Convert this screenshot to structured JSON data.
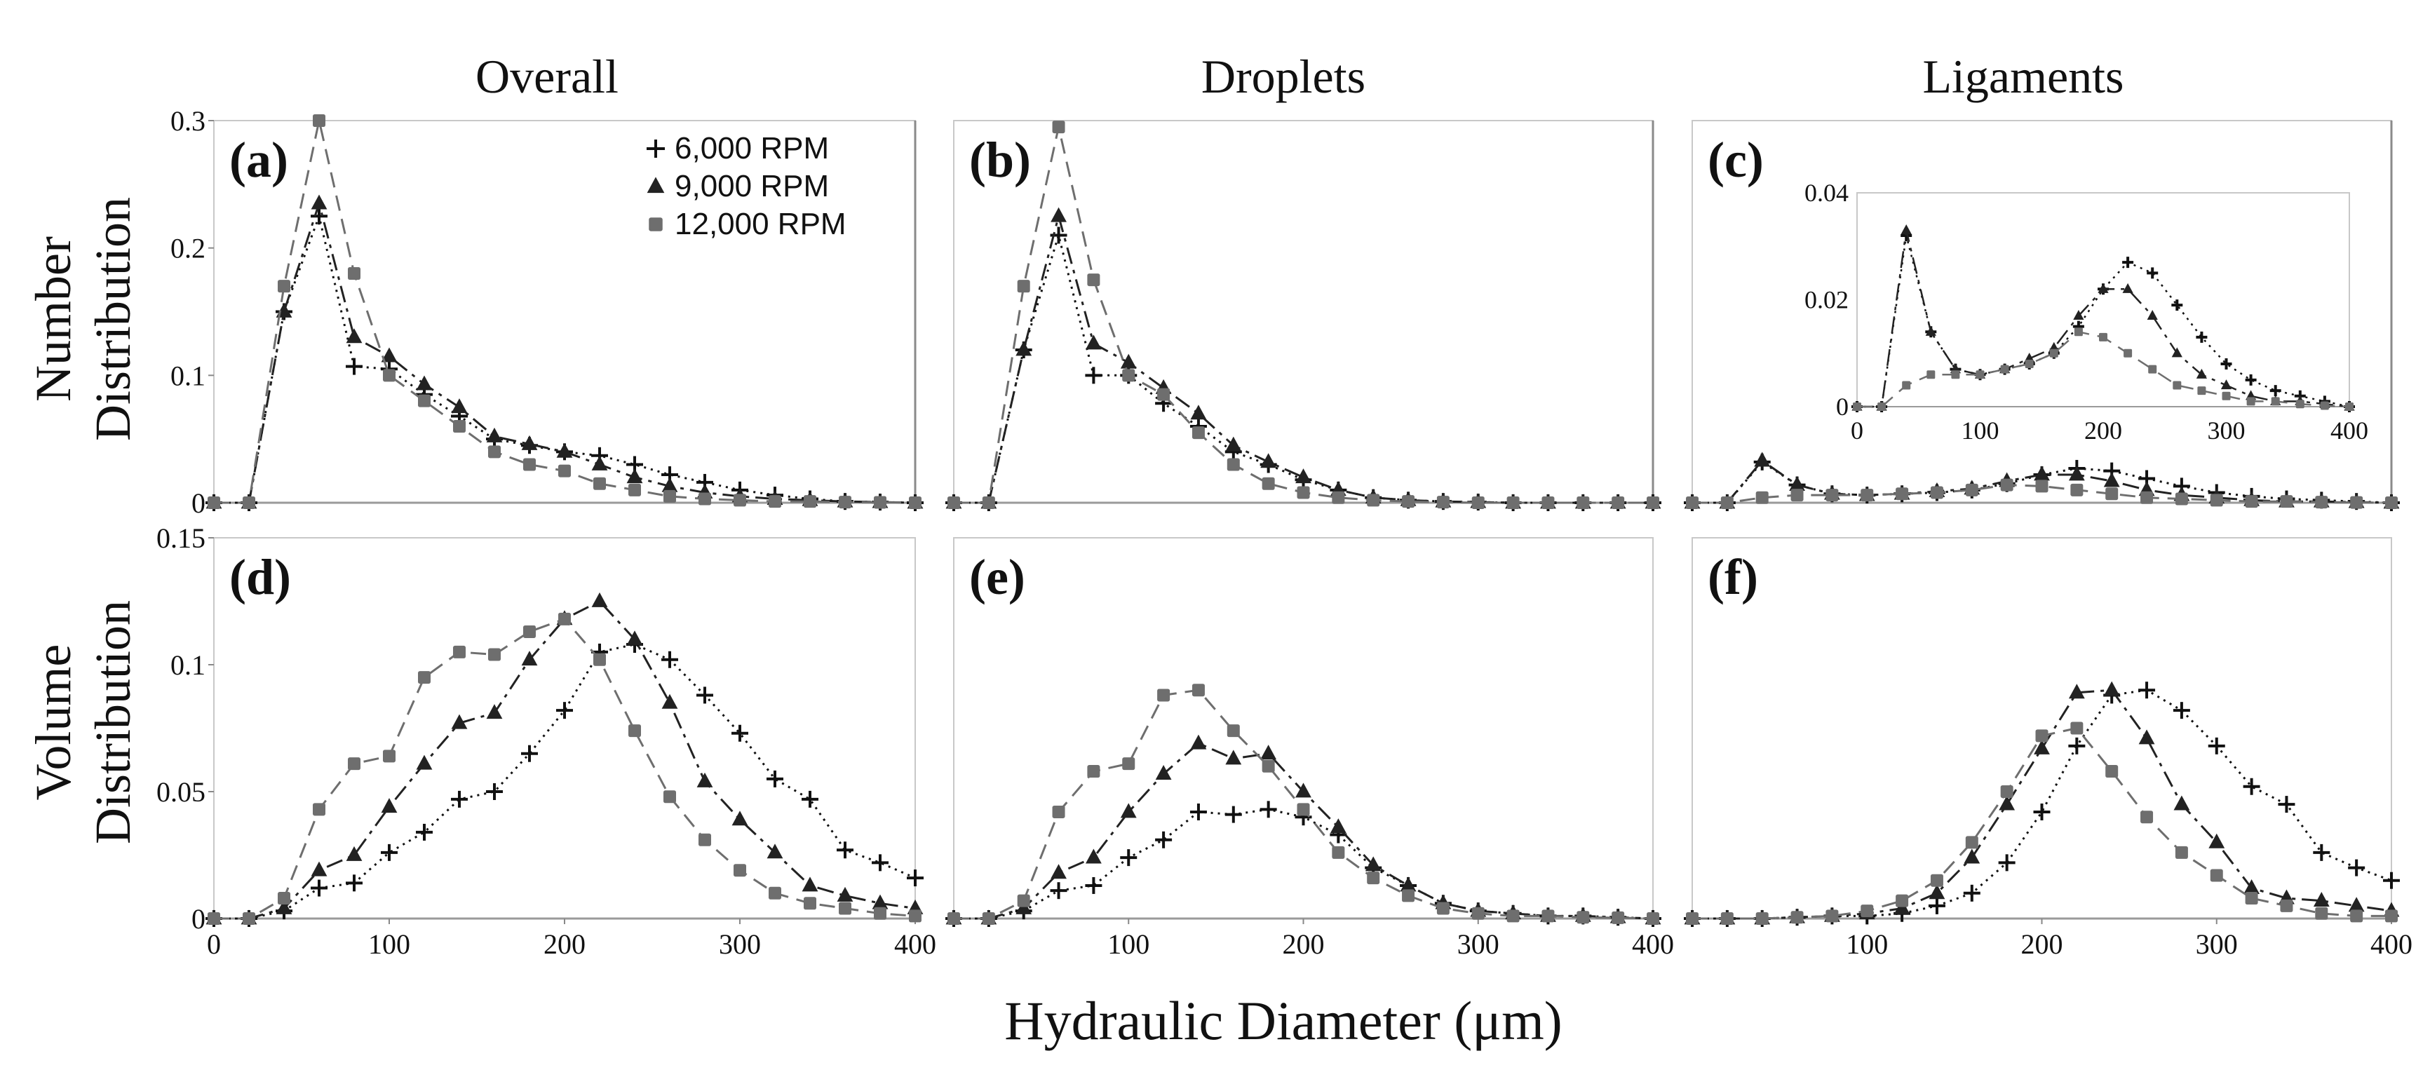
{
  "figure": {
    "x_label": "Hydraulic Diameter (μm)",
    "column_titles": [
      "Overall",
      "Droplets",
      "Ligaments"
    ],
    "row_labels": [
      {
        "line1": "Number",
        "line2": "Distribution"
      },
      {
        "line1": "Volume",
        "line2": "Distribution"
      }
    ]
  },
  "series_styles": [
    {
      "name": "6,000 RPM",
      "color": "#111111",
      "marker": "plus",
      "dash": "3,7"
    },
    {
      "name": "9,000 RPM",
      "color": "#222222",
      "marker": "triangle",
      "dash": "24,9,5,9"
    },
    {
      "name": "12,000 RPM",
      "color": "#6e6e6e",
      "marker": "square",
      "dash": "22,12"
    }
  ],
  "chart_data": [
    {
      "id": "a",
      "panel_label": "(a)",
      "type": "line",
      "x_range": [
        0,
        400
      ],
      "y_range": [
        0,
        0.3
      ],
      "y_ticks": [
        {
          "v": 0,
          "t": "0"
        },
        {
          "v": 0.1,
          "t": "0.1"
        },
        {
          "v": 0.2,
          "t": "0.2"
        },
        {
          "v": 0.3,
          "t": "0.3"
        }
      ],
      "x_ticks": [],
      "legend": "top-right",
      "x": [
        0,
        20,
        40,
        60,
        80,
        100,
        120,
        140,
        160,
        180,
        200,
        220,
        240,
        260,
        280,
        300,
        320,
        340,
        360,
        380,
        400
      ],
      "series": [
        {
          "name": "6,000 RPM",
          "values": [
            0,
            0,
            0.15,
            0.225,
            0.107,
            0.105,
            0.085,
            0.068,
            0.05,
            0.045,
            0.04,
            0.037,
            0.03,
            0.022,
            0.016,
            0.01,
            0.006,
            0.003,
            0.001,
            0.0005,
            0
          ]
        },
        {
          "name": "9,000 RPM",
          "values": [
            0,
            0,
            0.15,
            0.235,
            0.13,
            0.115,
            0.093,
            0.075,
            0.052,
            0.046,
            0.04,
            0.03,
            0.02,
            0.013,
            0.008,
            0.005,
            0.003,
            0.002,
            0.001,
            0.0005,
            0
          ]
        },
        {
          "name": "12,000 RPM",
          "values": [
            0,
            0,
            0.17,
            0.3,
            0.18,
            0.1,
            0.08,
            0.06,
            0.04,
            0.03,
            0.025,
            0.015,
            0.01,
            0.005,
            0.003,
            0.002,
            0.001,
            0.001,
            0.0005,
            0.0003,
            0
          ]
        }
      ]
    },
    {
      "id": "b",
      "panel_label": "(b)",
      "type": "line",
      "x_range": [
        0,
        400
      ],
      "y_range": [
        0,
        0.3
      ],
      "y_ticks": [],
      "x_ticks": [],
      "x": [
        0,
        20,
        40,
        60,
        80,
        100,
        120,
        140,
        160,
        180,
        200,
        220,
        240,
        260,
        280,
        300,
        320,
        340,
        360,
        380,
        400
      ],
      "series": [
        {
          "name": "6,000 RPM",
          "values": [
            0,
            0,
            0.12,
            0.21,
            0.1,
            0.1,
            0.078,
            0.06,
            0.04,
            0.03,
            0.018,
            0.01,
            0.004,
            0.002,
            0.001,
            0.0005,
            0,
            0,
            0,
            0,
            0
          ]
        },
        {
          "name": "9,000 RPM",
          "values": [
            0,
            0,
            0.12,
            0.225,
            0.125,
            0.11,
            0.09,
            0.07,
            0.045,
            0.032,
            0.02,
            0.01,
            0.004,
            0.002,
            0.001,
            0.0005,
            0,
            0,
            0,
            0,
            0
          ]
        },
        {
          "name": "12,000 RPM",
          "values": [
            0,
            0,
            0.17,
            0.295,
            0.175,
            0.1,
            0.085,
            0.055,
            0.03,
            0.015,
            0.008,
            0.004,
            0.002,
            0.001,
            0.0005,
            0,
            0,
            0,
            0,
            0,
            0
          ]
        }
      ]
    },
    {
      "id": "c",
      "panel_label": "(c)",
      "type": "line",
      "x_range": [
        0,
        400
      ],
      "y_range": [
        0,
        0.3
      ],
      "y_ticks": [],
      "x_ticks": [],
      "x": [
        0,
        20,
        40,
        60,
        80,
        100,
        120,
        140,
        160,
        180,
        200,
        220,
        240,
        260,
        280,
        300,
        320,
        340,
        360,
        380,
        400
      ],
      "series": [
        {
          "name": "6,000 RPM",
          "values": [
            0,
            0,
            0.032,
            0.014,
            0.007,
            0.006,
            0.007,
            0.008,
            0.01,
            0.015,
            0.022,
            0.027,
            0.025,
            0.019,
            0.013,
            0.008,
            0.005,
            0.003,
            0.002,
            0.001,
            0
          ]
        },
        {
          "name": "9,000 RPM",
          "values": [
            0,
            0,
            0.033,
            0.014,
            0.007,
            0.006,
            0.007,
            0.009,
            0.011,
            0.017,
            0.022,
            0.022,
            0.017,
            0.01,
            0.006,
            0.004,
            0.002,
            0.001,
            0.001,
            0.0005,
            0
          ]
        },
        {
          "name": "12,000 RPM",
          "values": [
            0,
            0,
            0.004,
            0.006,
            0.006,
            0.006,
            0.007,
            0.008,
            0.01,
            0.014,
            0.013,
            0.01,
            0.007,
            0.004,
            0.003,
            0.002,
            0.001,
            0.001,
            0.0005,
            0.0002,
            0
          ]
        }
      ],
      "inset": {
        "x_range": [
          0,
          400
        ],
        "y_range": [
          0,
          0.04
        ],
        "y_ticks": [
          {
            "v": 0,
            "t": "0"
          },
          {
            "v": 0.02,
            "t": "0.02"
          },
          {
            "v": 0.04,
            "t": "0.04"
          }
        ],
        "x_ticks": [
          {
            "v": 0,
            "t": "0"
          },
          {
            "v": 100,
            "t": "100"
          },
          {
            "v": 200,
            "t": "200"
          },
          {
            "v": 300,
            "t": "300"
          },
          {
            "v": 400,
            "t": "400"
          }
        ]
      }
    },
    {
      "id": "d",
      "panel_label": "(d)",
      "type": "line",
      "x_range": [
        0,
        400
      ],
      "y_range": [
        0,
        0.15
      ],
      "y_ticks": [
        {
          "v": 0,
          "t": "0"
        },
        {
          "v": 0.05,
          "t": "0.05"
        },
        {
          "v": 0.1,
          "t": "0.1"
        },
        {
          "v": 0.15,
          "t": "0.15"
        }
      ],
      "x_ticks": [
        {
          "v": 0,
          "t": "0"
        },
        {
          "v": 100,
          "t": "100"
        },
        {
          "v": 200,
          "t": "200"
        },
        {
          "v": 300,
          "t": "300"
        },
        {
          "v": 400,
          "t": "400"
        }
      ],
      "x": [
        0,
        20,
        40,
        60,
        80,
        100,
        120,
        140,
        160,
        180,
        200,
        220,
        240,
        260,
        280,
        300,
        320,
        340,
        360,
        380,
        400
      ],
      "series": [
        {
          "name": "6,000 RPM",
          "values": [
            0,
            0,
            0.003,
            0.012,
            0.014,
            0.026,
            0.034,
            0.047,
            0.05,
            0.065,
            0.082,
            0.105,
            0.108,
            0.102,
            0.088,
            0.073,
            0.055,
            0.047,
            0.027,
            0.022,
            0.016
          ]
        },
        {
          "name": "9,000 RPM",
          "values": [
            0,
            0,
            0.004,
            0.019,
            0.025,
            0.044,
            0.061,
            0.077,
            0.081,
            0.102,
            0.118,
            0.125,
            0.11,
            0.085,
            0.054,
            0.039,
            0.026,
            0.013,
            0.009,
            0.006,
            0.004
          ]
        },
        {
          "name": "12,000 RPM",
          "values": [
            0,
            0,
            0.008,
            0.043,
            0.061,
            0.064,
            0.095,
            0.105,
            0.104,
            0.113,
            0.118,
            0.102,
            0.074,
            0.048,
            0.031,
            0.019,
            0.01,
            0.006,
            0.004,
            0.002,
            0.001
          ]
        }
      ]
    },
    {
      "id": "e",
      "panel_label": "(e)",
      "type": "line",
      "x_range": [
        0,
        400
      ],
      "y_range": [
        0,
        0.15
      ],
      "y_ticks": [],
      "x_ticks": [
        {
          "v": 100,
          "t": "100"
        },
        {
          "v": 200,
          "t": "200"
        },
        {
          "v": 300,
          "t": "300"
        },
        {
          "v": 400,
          "t": "400"
        }
      ],
      "x": [
        0,
        20,
        40,
        60,
        80,
        100,
        120,
        140,
        160,
        180,
        200,
        220,
        240,
        260,
        280,
        300,
        320,
        340,
        360,
        380,
        400
      ],
      "series": [
        {
          "name": "6,000 RPM",
          "values": [
            0,
            0,
            0.003,
            0.011,
            0.013,
            0.024,
            0.031,
            0.042,
            0.041,
            0.043,
            0.04,
            0.033,
            0.02,
            0.013,
            0.006,
            0.003,
            0.002,
            0.001,
            0.001,
            0.0005,
            0
          ]
        },
        {
          "name": "9,000 RPM",
          "values": [
            0,
            0,
            0.004,
            0.018,
            0.024,
            0.042,
            0.057,
            0.069,
            0.063,
            0.065,
            0.05,
            0.036,
            0.021,
            0.013,
            0.006,
            0.003,
            0.002,
            0.001,
            0.001,
            0.0005,
            0
          ]
        },
        {
          "name": "12,000 RPM",
          "values": [
            0,
            0,
            0.007,
            0.042,
            0.058,
            0.061,
            0.088,
            0.09,
            0.074,
            0.06,
            0.043,
            0.026,
            0.016,
            0.009,
            0.004,
            0.002,
            0.001,
            0.001,
            0.0005,
            0.0003,
            0
          ]
        }
      ]
    },
    {
      "id": "f",
      "panel_label": "(f)",
      "type": "line",
      "x_range": [
        0,
        400
      ],
      "y_range": [
        0,
        0.15
      ],
      "y_ticks": [],
      "x_ticks": [
        {
          "v": 100,
          "t": "100"
        },
        {
          "v": 200,
          "t": "200"
        },
        {
          "v": 300,
          "t": "300"
        },
        {
          "v": 400,
          "t": "400"
        }
      ],
      "x": [
        0,
        20,
        40,
        60,
        80,
        100,
        120,
        140,
        160,
        180,
        200,
        220,
        240,
        260,
        280,
        300,
        320,
        340,
        360,
        380,
        400
      ],
      "series": [
        {
          "name": "6,000 RPM",
          "values": [
            0,
            0,
            0,
            0.0005,
            0.001,
            0.001,
            0.002,
            0.005,
            0.01,
            0.022,
            0.042,
            0.068,
            0.088,
            0.09,
            0.082,
            0.068,
            0.052,
            0.045,
            0.026,
            0.02,
            0.015
          ]
        },
        {
          "name": "9,000 RPM",
          "values": [
            0,
            0,
            0,
            0.0005,
            0.001,
            0.002,
            0.004,
            0.01,
            0.024,
            0.045,
            0.067,
            0.089,
            0.09,
            0.071,
            0.045,
            0.03,
            0.012,
            0.008,
            0.007,
            0.005,
            0.003
          ]
        },
        {
          "name": "12,000 RPM",
          "values": [
            0,
            0,
            0,
            0.0005,
            0.001,
            0.003,
            0.007,
            0.015,
            0.03,
            0.05,
            0.072,
            0.075,
            0.058,
            0.04,
            0.026,
            0.017,
            0.008,
            0.005,
            0.002,
            0.001,
            0.001
          ]
        }
      ]
    }
  ]
}
